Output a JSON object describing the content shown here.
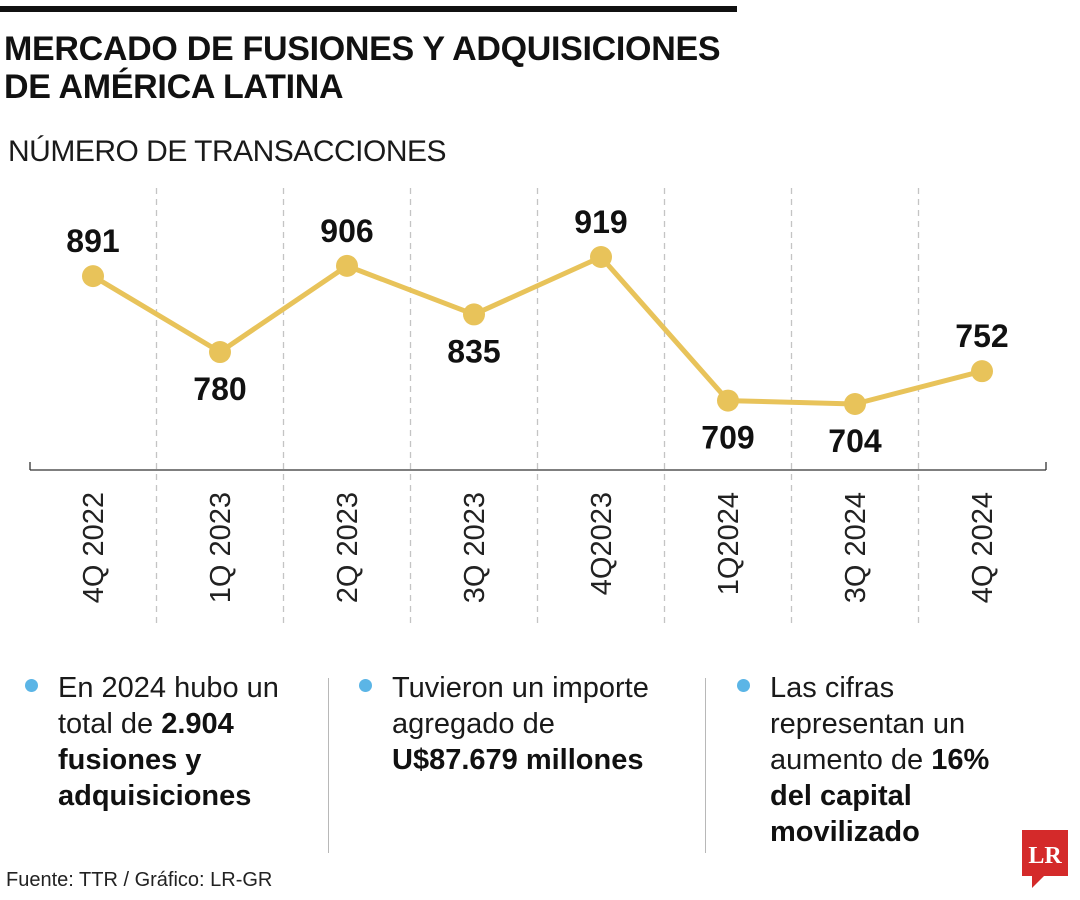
{
  "header": {
    "title": "MERCADO DE FUSIONES Y ADQUISICIONES DE AMÉRICA LATINA",
    "subtitle": "NÚMERO DE TRANSACCIONES"
  },
  "chart_data": {
    "type": "line",
    "title": "MERCADO DE FUSIONES Y ADQUISICIONES DE AMÉRICA LATINA",
    "ylabel": "NÚMERO DE TRANSACCIONES",
    "categories": [
      "4Q 2022",
      "1Q 2023",
      "2Q 2023",
      "3Q 2023",
      "4Q2023",
      "1Q2024",
      "3Q 2024",
      "4Q 2024"
    ],
    "values": [
      891,
      780,
      906,
      835,
      919,
      709,
      704,
      752
    ],
    "label_position": [
      "above",
      "below",
      "above",
      "below",
      "above",
      "below",
      "below",
      "above"
    ],
    "ylim": [
      600,
      960
    ],
    "line_color": "#e8c35a",
    "grid": "vertical dashed separators"
  },
  "notes": [
    {
      "pre": "En 2024 hubo un total de ",
      "bold": "2.904 fusiones y adquisiciones"
    },
    {
      "pre": "Tuvieron un importe agregado de ",
      "bold": "U$87.679 millones"
    },
    {
      "pre": "Las cifras representan un aumento de ",
      "bold": "16% del capital movilizado"
    }
  ],
  "footer": {
    "source": "Fuente: TTR / Gráfico: LR-GR",
    "logo_text": "LR"
  },
  "colors": {
    "line": "#e8c35a",
    "bullet": "#5bb5e6",
    "logo": "#d42a2a"
  }
}
